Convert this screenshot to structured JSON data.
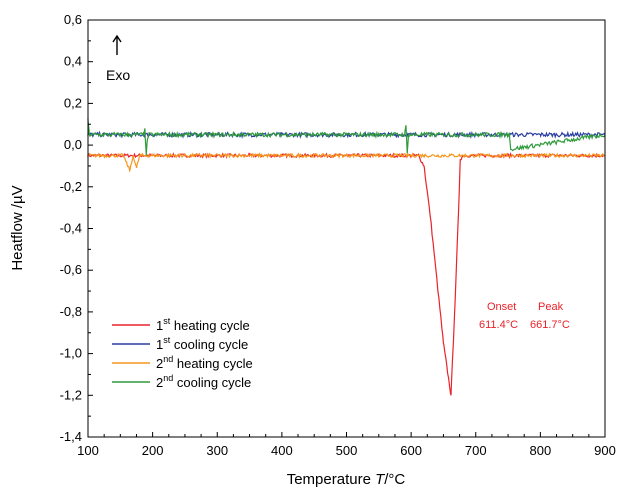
{
  "chart_data": {
    "type": "line",
    "xlabel": {
      "prefix": "Temperature ",
      "symbol": "T",
      "unit": "/°C"
    },
    "ylabel": "Heatflow /µV",
    "xlim": [
      100,
      900
    ],
    "ylim": [
      -1.4,
      0.6
    ],
    "xticks": [
      100,
      200,
      300,
      400,
      500,
      600,
      700,
      800,
      900
    ],
    "yticks": [
      -1.4,
      -1.2,
      -1.0,
      -0.8,
      -0.6,
      -0.4,
      -0.2,
      0.0,
      0.2,
      0.4,
      0.6
    ],
    "ytick_labels": [
      "-1,4",
      "-1,2",
      "-1,0",
      "-0,8",
      "-0,6",
      "-0,4",
      "-0,2",
      "0,0",
      "0,2",
      "0,4",
      "0,6"
    ],
    "grid": false,
    "legend_position": "bottom-left",
    "exo_label": "Exo",
    "annotation": {
      "onset_label": "Onset",
      "peak_label": "Peak",
      "onset_value": "611.4°C",
      "peak_value": "661.7°C",
      "color": "#e8232a"
    },
    "series": [
      {
        "name": "heating cycle",
        "ordinal": "1",
        "suffix": "st",
        "color": "#e8232a",
        "x": [
          100,
          150,
          200,
          250,
          300,
          350,
          400,
          450,
          500,
          550,
          600,
          611.4,
          620,
          630,
          640,
          650,
          661.7,
          668,
          673,
          676,
          680,
          700,
          750,
          800,
          850,
          900
        ],
        "y": [
          -0.05,
          -0.05,
          -0.05,
          -0.05,
          -0.05,
          -0.05,
          -0.05,
          -0.05,
          -0.05,
          -0.05,
          -0.05,
          -0.05,
          -0.1,
          -0.35,
          -0.65,
          -0.95,
          -1.2,
          -0.75,
          -0.35,
          -0.07,
          -0.05,
          -0.05,
          -0.05,
          -0.05,
          -0.05,
          -0.05
        ],
        "noise": 0.008
      },
      {
        "name": "cooling cycle",
        "ordinal": "1",
        "suffix": "st",
        "color": "#2a3fa0",
        "x": [
          100,
          200,
          300,
          400,
          500,
          600,
          700,
          800,
          900
        ],
        "y": [
          0.05,
          0.05,
          0.05,
          0.05,
          0.05,
          0.05,
          0.05,
          0.05,
          0.05
        ],
        "noise": 0.01
      },
      {
        "name": "heating cycle",
        "ordinal": "2",
        "suffix": "nd",
        "color": "#f5961e",
        "x": [
          100,
          155,
          160,
          165,
          170,
          175,
          180,
          185,
          190,
          200,
          600,
          620,
          640,
          660,
          680,
          700,
          900
        ],
        "y": [
          -0.05,
          -0.05,
          -0.09,
          -0.12,
          -0.05,
          -0.11,
          -0.05,
          -0.05,
          -0.05,
          -0.05,
          -0.05,
          -0.05,
          -0.05,
          -0.05,
          -0.05,
          -0.05,
          -0.05
        ],
        "noise": 0.008
      },
      {
        "name": "cooling cycle",
        "ordinal": "2",
        "suffix": "nd",
        "color": "#2f9a3a",
        "x": [
          100,
          102,
          104,
          186,
          188,
          190,
          192,
          194,
          400,
          590,
          592,
          594,
          596,
          750,
          752,
          754,
          900
        ],
        "y": [
          0.12,
          0.05,
          0.05,
          0.05,
          0.08,
          -0.05,
          0.03,
          0.05,
          0.05,
          0.05,
          0.09,
          -0.04,
          0.05,
          0.05,
          0.06,
          -0.02,
          0.05
        ],
        "noise": 0.01
      }
    ]
  }
}
